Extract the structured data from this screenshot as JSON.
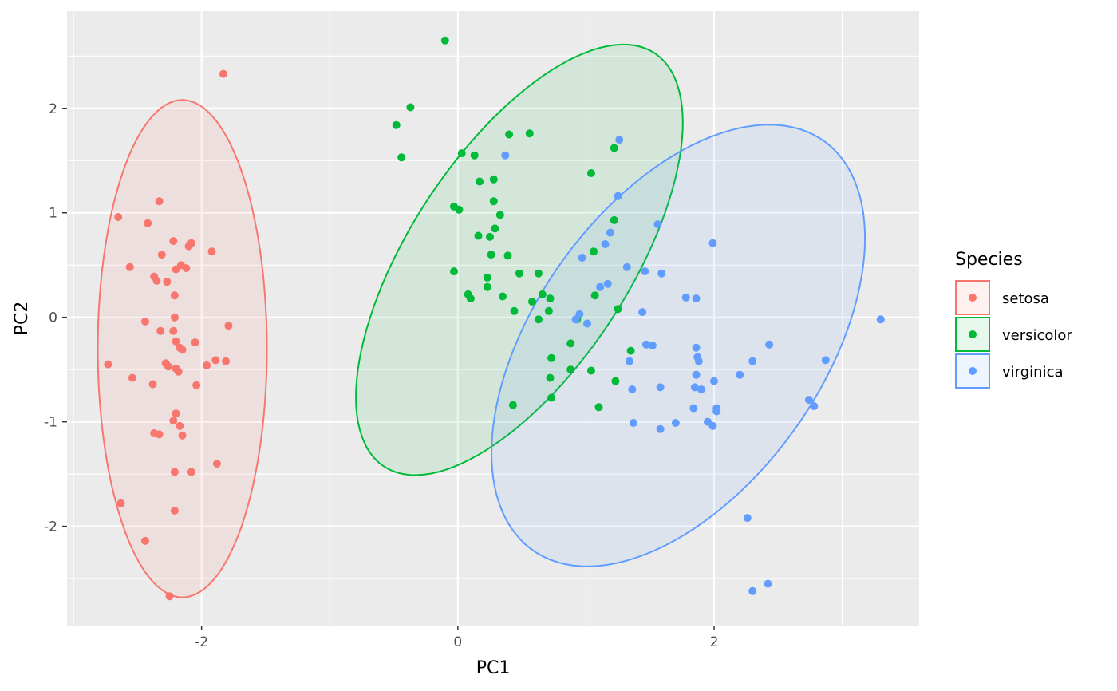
{
  "chart_data": {
    "type": "scatter",
    "title": "",
    "xlabel": "PC1",
    "ylabel": "PC2",
    "xlim": [
      -3.05,
      3.6
    ],
    "ylim": [
      -2.95,
      2.93
    ],
    "x_ticks": [
      -2,
      0,
      2
    ],
    "y_ticks": [
      -2,
      -1,
      0,
      1,
      2
    ],
    "x_tick_labels": [
      "-2",
      "0",
      "2"
    ],
    "y_tick_labels": [
      "-2",
      "-1",
      "0",
      "1",
      "2"
    ],
    "grid": true,
    "legend": {
      "title": "Species",
      "position": "right"
    },
    "series": [
      {
        "name": "setosa",
        "color": "#F8766D",
        "ellipse": {
          "cx": -2.15,
          "cy": -0.3,
          "a": 0.66,
          "b": 2.38,
          "angle_deg": 0
        },
        "points": [
          [
            -1.83,
            2.33
          ],
          [
            -2.33,
            1.11
          ],
          [
            -2.65,
            0.96
          ],
          [
            -2.42,
            0.9
          ],
          [
            -2.08,
            0.71
          ],
          [
            -2.1,
            0.68
          ],
          [
            -2.22,
            0.73
          ],
          [
            -1.92,
            0.63
          ],
          [
            -2.31,
            0.6
          ],
          [
            -2.56,
            0.48
          ],
          [
            -2.2,
            0.46
          ],
          [
            -2.16,
            0.5
          ],
          [
            -2.12,
            0.47
          ],
          [
            -2.37,
            0.39
          ],
          [
            -2.35,
            0.35
          ],
          [
            -2.27,
            0.34
          ],
          [
            -2.21,
            0.21
          ],
          [
            -2.21,
            0.0
          ],
          [
            -2.44,
            -0.04
          ],
          [
            -1.79,
            -0.08
          ],
          [
            -2.32,
            -0.13
          ],
          [
            -2.22,
            -0.13
          ],
          [
            -2.73,
            -0.45
          ],
          [
            -2.2,
            -0.23
          ],
          [
            -2.17,
            -0.29
          ],
          [
            -2.15,
            -0.31
          ],
          [
            -2.05,
            -0.24
          ],
          [
            -1.89,
            -0.41
          ],
          [
            -1.81,
            -0.42
          ],
          [
            -1.96,
            -0.46
          ],
          [
            -2.28,
            -0.44
          ],
          [
            -2.26,
            -0.47
          ],
          [
            -2.2,
            -0.49
          ],
          [
            -2.18,
            -0.52
          ],
          [
            -2.54,
            -0.58
          ],
          [
            -2.38,
            -0.64
          ],
          [
            -2.04,
            -0.65
          ],
          [
            -2.2,
            -0.92
          ],
          [
            -2.22,
            -0.99
          ],
          [
            -2.17,
            -1.04
          ],
          [
            -2.37,
            -1.11
          ],
          [
            -2.33,
            -1.12
          ],
          [
            -2.15,
            -1.13
          ],
          [
            -1.88,
            -1.4
          ],
          [
            -2.21,
            -1.48
          ],
          [
            -2.08,
            -1.48
          ],
          [
            -2.63,
            -1.78
          ],
          [
            -2.21,
            -1.85
          ],
          [
            -2.44,
            -2.14
          ],
          [
            -2.25,
            -2.67
          ]
        ]
      },
      {
        "name": "versicolor",
        "color": "#00BA38",
        "ellipse": {
          "cx": 0.48,
          "cy": 0.55,
          "a": 0.9,
          "b": 2.25,
          "angle_deg": -26
        },
        "points": [
          [
            -0.1,
            2.65
          ],
          [
            -0.37,
            2.01
          ],
          [
            -0.48,
            1.84
          ],
          [
            -0.44,
            1.53
          ],
          [
            0.03,
            1.57
          ],
          [
            0.13,
            1.55
          ],
          [
            0.4,
            1.75
          ],
          [
            0.56,
            1.76
          ],
          [
            0.17,
            1.3
          ],
          [
            0.28,
            1.32
          ],
          [
            0.28,
            1.11
          ],
          [
            -0.03,
            1.06
          ],
          [
            0.01,
            1.03
          ],
          [
            0.33,
            0.98
          ],
          [
            0.29,
            0.85
          ],
          [
            0.16,
            0.78
          ],
          [
            0.25,
            0.77
          ],
          [
            0.26,
            0.6
          ],
          [
            0.39,
            0.59
          ],
          [
            -0.03,
            0.44
          ],
          [
            0.48,
            0.42
          ],
          [
            0.63,
            0.42
          ],
          [
            0.23,
            0.38
          ],
          [
            0.23,
            0.29
          ],
          [
            0.08,
            0.22
          ],
          [
            0.1,
            0.18
          ],
          [
            0.35,
            0.2
          ],
          [
            0.66,
            0.22
          ],
          [
            0.72,
            0.18
          ],
          [
            0.58,
            0.15
          ],
          [
            0.44,
            0.06
          ],
          [
            0.71,
            0.06
          ],
          [
            0.63,
            -0.02
          ],
          [
            1.04,
            1.38
          ],
          [
            1.22,
            1.62
          ],
          [
            1.22,
            0.93
          ],
          [
            1.06,
            0.63
          ],
          [
            1.07,
            0.21
          ],
          [
            1.25,
            0.08
          ],
          [
            0.93,
            -0.02
          ],
          [
            0.88,
            -0.25
          ],
          [
            1.35,
            -0.32
          ],
          [
            0.73,
            -0.39
          ],
          [
            0.72,
            -0.58
          ],
          [
            0.88,
            -0.5
          ],
          [
            1.04,
            -0.51
          ],
          [
            1.23,
            -0.61
          ],
          [
            0.43,
            -0.84
          ],
          [
            0.73,
            -0.77
          ],
          [
            1.1,
            -0.86
          ]
        ]
      },
      {
        "name": "virginica",
        "color": "#619CFF",
        "ellipse": {
          "cx": 1.72,
          "cy": -0.27,
          "a": 1.18,
          "b": 2.28,
          "angle_deg": -26
        },
        "points": [
          [
            1.26,
            1.7
          ],
          [
            0.37,
            1.55
          ],
          [
            1.25,
            1.16
          ],
          [
            1.56,
            0.89
          ],
          [
            1.19,
            0.81
          ],
          [
            1.99,
            0.71
          ],
          [
            1.15,
            0.7
          ],
          [
            0.97,
            0.57
          ],
          [
            1.32,
            0.48
          ],
          [
            1.46,
            0.44
          ],
          [
            1.59,
            0.42
          ],
          [
            1.17,
            0.32
          ],
          [
            1.11,
            0.29
          ],
          [
            1.78,
            0.19
          ],
          [
            1.86,
            0.18
          ],
          [
            1.44,
            0.05
          ],
          [
            0.95,
            0.03
          ],
          [
            0.92,
            -0.02
          ],
          [
            1.01,
            -0.06
          ],
          [
            3.3,
            -0.02
          ],
          [
            1.47,
            -0.26
          ],
          [
            1.52,
            -0.27
          ],
          [
            1.86,
            -0.29
          ],
          [
            2.43,
            -0.26
          ],
          [
            1.87,
            -0.38
          ],
          [
            1.88,
            -0.42
          ],
          [
            2.3,
            -0.42
          ],
          [
            2.87,
            -0.41
          ],
          [
            1.34,
            -0.42
          ],
          [
            1.86,
            -0.55
          ],
          [
            2.2,
            -0.55
          ],
          [
            2.0,
            -0.61
          ],
          [
            1.58,
            -0.67
          ],
          [
            1.85,
            -0.67
          ],
          [
            1.9,
            -0.69
          ],
          [
            1.36,
            -0.69
          ],
          [
            2.74,
            -0.79
          ],
          [
            2.78,
            -0.85
          ],
          [
            1.84,
            -0.87
          ],
          [
            2.02,
            -0.87
          ],
          [
            2.02,
            -0.9
          ],
          [
            1.37,
            -1.01
          ],
          [
            1.7,
            -1.01
          ],
          [
            1.95,
            -1.0
          ],
          [
            1.99,
            -1.04
          ],
          [
            1.58,
            -1.07
          ],
          [
            2.26,
            -1.92
          ],
          [
            2.42,
            -2.55
          ],
          [
            2.3,
            -2.62
          ]
        ]
      }
    ]
  }
}
